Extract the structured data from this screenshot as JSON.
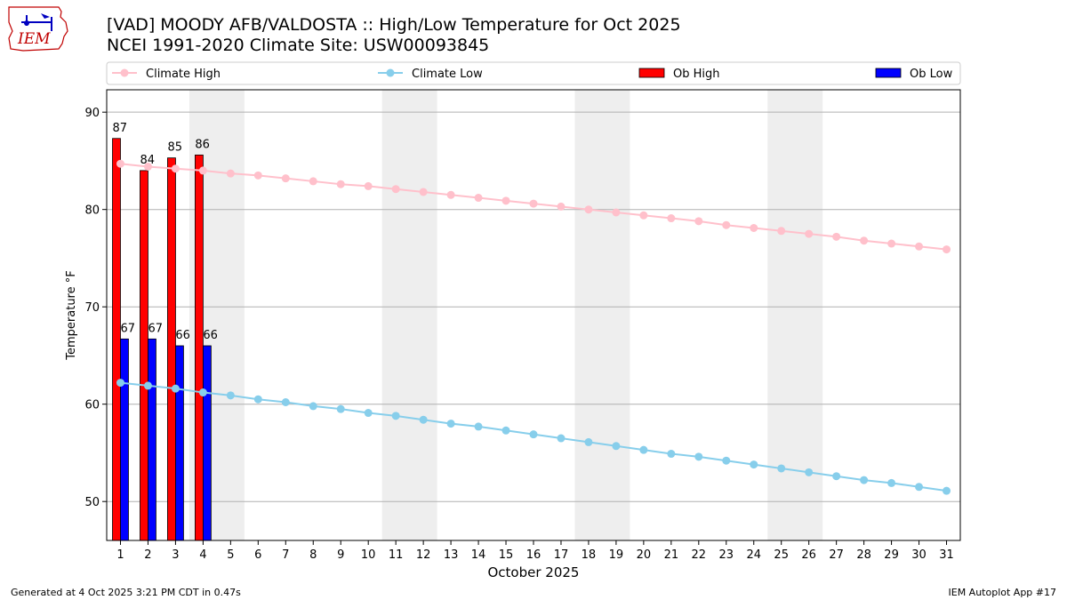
{
  "header": {
    "title_line1": "[VAD] MOODY AFB/VALDOSTA :: High/Low Temperature for Oct 2025",
    "title_line2": "NCEI 1991-2020 Climate Site: USW00093845",
    "logo_text": "IEM"
  },
  "footer": {
    "generated": "Generated at 4 Oct 2025 3:21 PM CDT in 0.47s",
    "app": "IEM Autoplot App #17"
  },
  "colors": {
    "climate_high": "#ffc0cb",
    "climate_low": "#87ceeb",
    "ob_high": "#ff0000",
    "ob_low": "#0000ff",
    "weekend_shade": "#eeeeee",
    "grid": "#b0b0b0",
    "logo": "#c00000"
  },
  "chart_data": {
    "type": "bar",
    "xlabel": "October 2025",
    "ylabel": "Temperature °F",
    "ylim": [
      46,
      92.3
    ],
    "xlim": [
      0.5,
      31.5
    ],
    "yticks": [
      50,
      60,
      70,
      80,
      90
    ],
    "x": [
      1,
      2,
      3,
      4,
      5,
      6,
      7,
      8,
      9,
      10,
      11,
      12,
      13,
      14,
      15,
      16,
      17,
      18,
      19,
      20,
      21,
      22,
      23,
      24,
      25,
      26,
      27,
      28,
      29,
      30,
      31
    ],
    "grid": "horizontal",
    "legend_position": "top",
    "weekend_bands": [
      [
        4,
        5
      ],
      [
        11,
        12
      ],
      [
        18,
        19
      ],
      [
        25,
        26
      ]
    ],
    "series": [
      {
        "name": "Climate High",
        "kind": "line",
        "values": [
          84.7,
          84.4,
          84.2,
          84.0,
          83.7,
          83.5,
          83.2,
          82.9,
          82.6,
          82.4,
          82.1,
          81.8,
          81.5,
          81.2,
          80.9,
          80.6,
          80.3,
          80.0,
          79.7,
          79.4,
          79.1,
          78.8,
          78.4,
          78.1,
          77.8,
          77.5,
          77.2,
          76.8,
          76.5,
          76.2,
          75.9
        ]
      },
      {
        "name": "Climate Low",
        "kind": "line",
        "values": [
          62.2,
          61.9,
          61.6,
          61.2,
          60.9,
          60.5,
          60.2,
          59.8,
          59.5,
          59.1,
          58.8,
          58.4,
          58.0,
          57.7,
          57.3,
          56.9,
          56.5,
          56.1,
          55.7,
          55.3,
          54.9,
          54.6,
          54.2,
          53.8,
          53.4,
          53.0,
          52.6,
          52.2,
          51.9,
          51.5,
          51.1
        ]
      },
      {
        "name": "Ob High",
        "kind": "bar",
        "x": [
          1,
          2,
          3,
          4
        ],
        "values": [
          87,
          84,
          85,
          86
        ],
        "drawn": [
          87.3,
          84.0,
          85.3,
          85.6
        ]
      },
      {
        "name": "Ob Low",
        "kind": "bar",
        "x": [
          1,
          2,
          3,
          4
        ],
        "values": [
          67,
          67,
          66,
          66
        ],
        "drawn": [
          66.7,
          66.7,
          66.0,
          66.0
        ]
      }
    ]
  }
}
